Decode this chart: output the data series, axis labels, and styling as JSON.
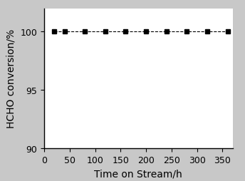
{
  "x_data": [
    20,
    40,
    80,
    120,
    160,
    200,
    240,
    280,
    320,
    360
  ],
  "y_data": [
    100,
    100,
    100,
    100,
    100,
    100,
    100,
    100,
    100,
    100
  ],
  "xlabel": "Time on Stream/h",
  "ylabel": "HCHO conversion/%",
  "xlim": [
    0,
    370
  ],
  "ylim": [
    90,
    102
  ],
  "xticks": [
    0,
    50,
    100,
    150,
    200,
    250,
    300,
    350
  ],
  "yticks": [
    90,
    95,
    100
  ],
  "line_color": "#000000",
  "marker": "s",
  "marker_size": 5,
  "marker_color": "#000000",
  "linestyle": "--",
  "linewidth": 0.8,
  "background_color": "#ffffff",
  "figure_facecolor": "#c8c8c8",
  "font_size": 9,
  "label_font_size": 10
}
